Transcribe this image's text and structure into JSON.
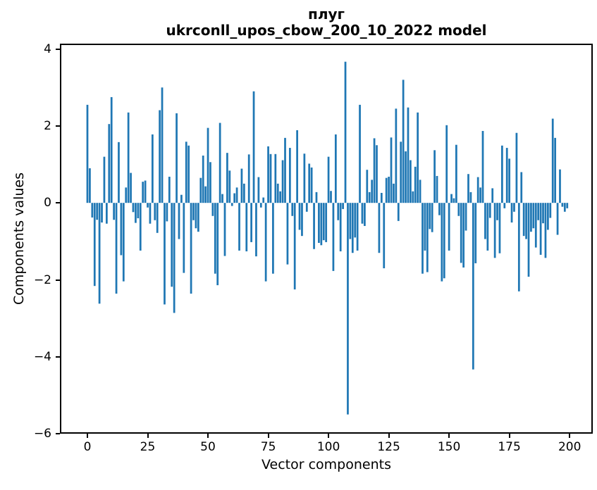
{
  "chart_data": {
    "type": "bar",
    "title": "плуг",
    "subtitle": "ukrconll_upos_cbow_200_10_2022 model",
    "xlabel": "Vector components",
    "ylabel": "Components values",
    "bar_color": "#1f77b4",
    "bar_width": 0.8,
    "grid": false,
    "xlim": [
      -11.4,
      209.6
    ],
    "ylim": [
      -6.0,
      4.14
    ],
    "xticks": [
      0,
      25,
      50,
      75,
      100,
      125,
      150,
      175,
      200
    ],
    "yticks": [
      4,
      2,
      0,
      -2,
      -4,
      -6
    ],
    "x_start_index": 0,
    "values": [
      2.55,
      0.9,
      -0.38,
      -2.16,
      -0.44,
      -2.62,
      -0.51,
      1.2,
      -0.54,
      2.05,
      2.75,
      -0.44,
      -2.36,
      1.58,
      -1.36,
      -2.04,
      0.4,
      2.35,
      0.78,
      -0.24,
      -0.52,
      -0.4,
      -1.24,
      0.55,
      0.58,
      -0.12,
      -0.54,
      1.78,
      -0.45,
      -0.78,
      2.41,
      3.0,
      -2.64,
      -0.48,
      0.68,
      -2.18,
      -2.86,
      2.33,
      -0.94,
      0.21,
      -1.82,
      1.59,
      1.49,
      -2.36,
      -0.45,
      -0.66,
      -0.75,
      0.65,
      1.23,
      0.43,
      1.95,
      1.06,
      -0.34,
      -1.84,
      -2.14,
      2.08,
      0.23,
      -1.38,
      1.3,
      0.84,
      -0.08,
      0.25,
      0.4,
      -1.24,
      0.89,
      0.5,
      -1.26,
      1.26,
      -1.02,
      2.9,
      -1.39,
      0.67,
      -0.12,
      0.14,
      -2.04,
      1.47,
      1.27,
      -1.84,
      1.27,
      0.5,
      0.3,
      1.11,
      1.69,
      -1.6,
      1.43,
      -0.34,
      -2.25,
      1.89,
      -0.7,
      -0.86,
      1.28,
      -0.23,
      1.02,
      0.92,
      -1.2,
      0.28,
      -1.04,
      -1.1,
      -0.97,
      -1.02,
      1.2,
      0.31,
      -1.77,
      1.78,
      -0.45,
      -1.26,
      -0.16,
      3.67,
      -5.5,
      -0.94,
      -1.3,
      -0.9,
      -1.24,
      2.55,
      -0.54,
      -0.6,
      0.86,
      0.28,
      0.6,
      1.68,
      1.5,
      -1.3,
      0.26,
      -1.7,
      0.65,
      0.68,
      1.7,
      0.5,
      2.45,
      -0.47,
      1.59,
      3.2,
      1.34,
      2.48,
      1.11,
      0.3,
      0.94,
      2.35,
      0.6,
      -1.84,
      -1.24,
      -1.8,
      -0.68,
      -0.76,
      1.37,
      0.7,
      -0.32,
      -2.04,
      -1.96,
      2.02,
      -1.24,
      0.23,
      0.12,
      1.51,
      -0.34,
      -1.56,
      -1.68,
      -0.72,
      0.75,
      0.28,
      -4.33,
      -1.57,
      0.67,
      0.4,
      1.87,
      -0.94,
      -1.24,
      -0.39,
      0.38,
      -1.43,
      -0.45,
      -1.31,
      1.49,
      -0.14,
      1.43,
      1.15,
      -0.51,
      -0.23,
      1.82,
      -2.3,
      0.8,
      -0.86,
      -0.94,
      -1.92,
      -0.75,
      -0.66,
      -1.16,
      -0.45,
      -1.35,
      -0.53,
      -1.43,
      -0.7,
      -0.39,
      2.19,
      1.69,
      -0.83,
      0.87,
      -0.1,
      -0.23,
      -0.14
    ]
  }
}
